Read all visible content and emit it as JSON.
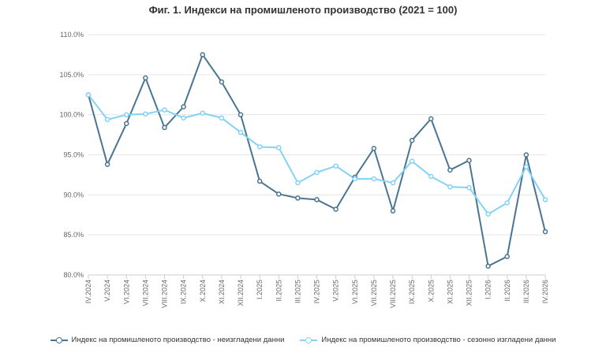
{
  "chart_data": {
    "type": "line",
    "title": "Фиг. 1. Индекси на промишленото производство (2021 = 100)",
    "xlabel": "",
    "ylabel": "",
    "categories": [
      "IV.2024",
      "V.2024",
      "VI.2024",
      "VII.2024",
      "VIII.2024",
      "IX.2024",
      "X.2024",
      "XI.2024",
      "XII.2024",
      "I.2025",
      "II.2025",
      "III.2025",
      "IV.2025",
      "V.2025",
      "VI.2025",
      "VII.2025",
      "VIII.2025",
      "IX.2025",
      "X.2025",
      "XI.2025",
      "XII.2025",
      "I.2026",
      "II.2026",
      "III.2026",
      "IV.2026"
    ],
    "ylim": [
      80,
      110
    ],
    "yticks": [
      80,
      85,
      90,
      95,
      100,
      105,
      110
    ],
    "ytick_labels": [
      "80.0%",
      "85.0%",
      "90.0%",
      "95.0%",
      "100.0%",
      "105.0%",
      "110.0%"
    ],
    "grid": true,
    "legend_position": "bottom",
    "series": [
      {
        "name": "Индекс на промишленото производство - неизгладени данни",
        "color": "#4a7592",
        "values": [
          102.5,
          93.8,
          98.9,
          104.6,
          98.4,
          101.0,
          107.5,
          104.1,
          100.0,
          91.7,
          90.1,
          89.6,
          89.4,
          88.2,
          92.2,
          95.8,
          88.0,
          96.8,
          99.5,
          93.1,
          94.3,
          81.1,
          82.3,
          95.0,
          85.4
        ]
      },
      {
        "name": "Индекс на промишленото производство - сезонно изгладени данни",
        "color": "#84d3f5",
        "values": [
          102.5,
          99.4,
          100.0,
          100.1,
          100.6,
          99.6,
          100.2,
          99.6,
          97.8,
          96.0,
          95.9,
          91.5,
          92.8,
          93.6,
          92.0,
          92.0,
          91.5,
          94.2,
          92.3,
          91.0,
          90.9,
          87.6,
          89.0,
          93.5,
          89.4
        ]
      }
    ]
  }
}
